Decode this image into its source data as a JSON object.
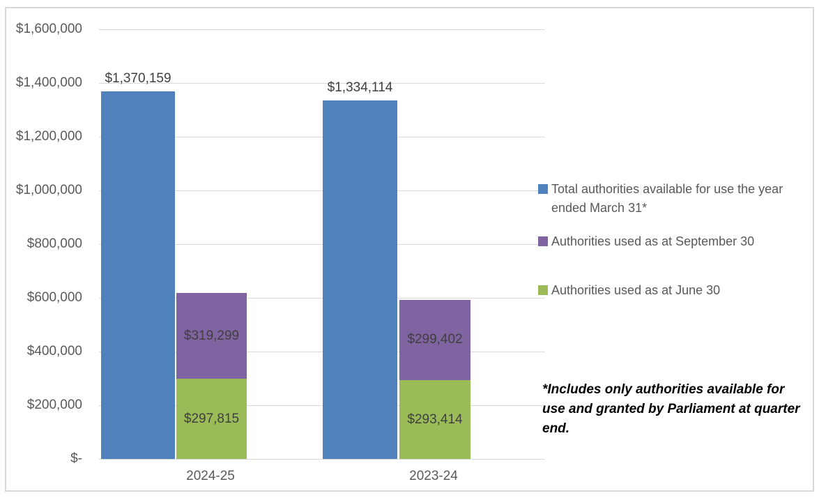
{
  "chart_data": {
    "type": "bar",
    "title": "",
    "categories": [
      "2024-25",
      "2023-24"
    ],
    "series": [
      {
        "name": "Total authorities available for use the year ended March 31*",
        "color": "#4F81BD",
        "values": [
          1370159,
          1334114
        ],
        "labels": [
          "$1,370,159",
          "$1,334,114"
        ]
      },
      {
        "name": "Authorities used as at September 30",
        "color": "#8064A2",
        "values": [
          319299,
          299402
        ],
        "labels": [
          "$319,299",
          "$299,402"
        ]
      },
      {
        "name": "Authorities used as at June 30",
        "color": "#9BBB59",
        "values": [
          297815,
          293414
        ],
        "labels": [
          "$297,815",
          "$293,414"
        ]
      }
    ],
    "stacking": "series 2 and 3 are stacked in one column beside series 1",
    "ylim": [
      0,
      1600000
    ],
    "ytick_step": 200000,
    "yticks": [
      "$-",
      "$200,000",
      "$400,000",
      "$600,000",
      "$800,000",
      "$1,000,000",
      "$1,200,000",
      "$1,400,000",
      "$1,600,000"
    ],
    "grid": true,
    "legend_position": "right",
    "footnote": "*Includes only authorities available for use and granted by Parliament at quarter end.",
    "colors": {
      "gridline": "#D9D9D9",
      "axis_text": "#595959",
      "data_label_text": "#3F3F3F",
      "frame_border": "#D8D8D8"
    }
  }
}
